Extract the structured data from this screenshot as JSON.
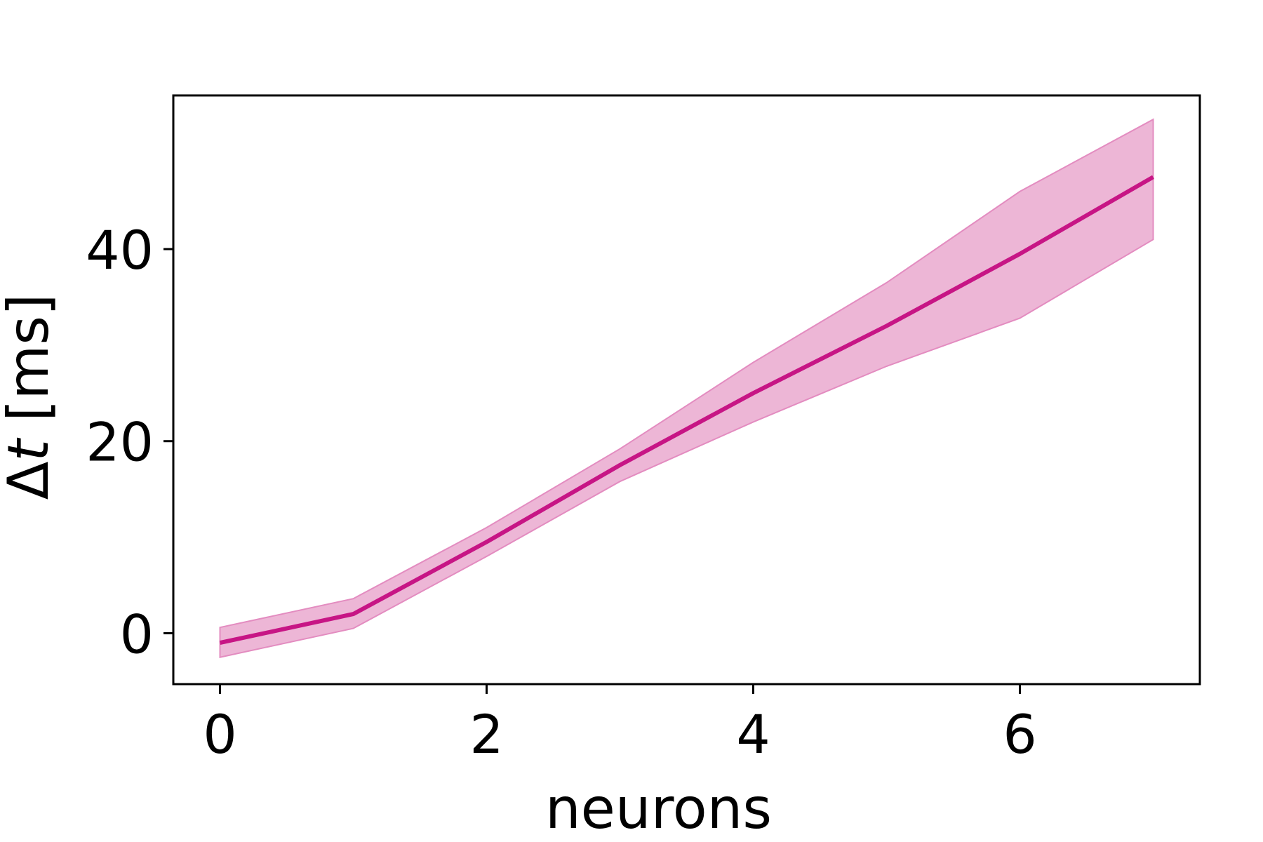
{
  "chart_data": {
    "type": "line",
    "xlabel": "neurons",
    "ylabel": {
      "delta": "Δ",
      "variable": "t",
      "unit": " [ms]"
    },
    "xlim": [
      -0.35,
      7.35
    ],
    "ylim": [
      -5.3,
      56
    ],
    "xticks": [
      0,
      2,
      4,
      6
    ],
    "yticks": [
      0,
      20,
      40
    ],
    "grid": false,
    "colors": {
      "line": "#c71585",
      "band_fill": "#e8a4cc",
      "band_edge": "#e38cc0"
    },
    "series": [
      {
        "x": [
          0,
          1,
          2,
          3,
          4,
          5,
          6,
          7
        ],
        "y": [
          -1,
          2,
          9.5,
          17.5,
          25,
          32,
          39.5,
          47.5
        ],
        "lower": [
          -2.5,
          0.5,
          8,
          15.8,
          22,
          27.8,
          32.8,
          41
        ],
        "upper": [
          0.6,
          3.6,
          11,
          19.2,
          28.2,
          36.5,
          46,
          53.5
        ]
      }
    ]
  }
}
